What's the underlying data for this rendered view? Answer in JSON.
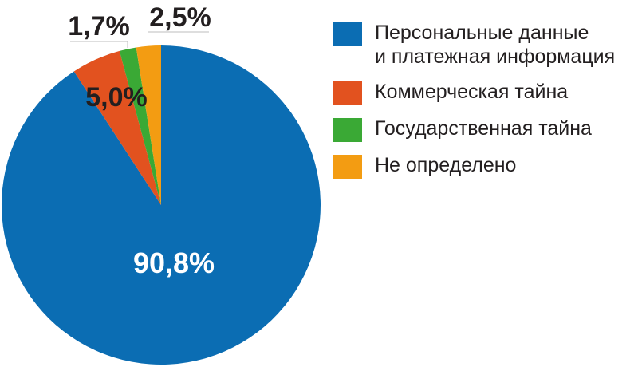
{
  "chart_data": {
    "type": "pie",
    "slices": [
      {
        "label": "Персональные данные и платежная информация",
        "value": 90.8,
        "display": "90,8%",
        "color": "#0b6db3"
      },
      {
        "label": "Коммерческая тайна",
        "value": 5.0,
        "display": "5,0%",
        "color": "#e2521f"
      },
      {
        "label": "Государственная тайна",
        "value": 1.7,
        "display": "1,7%",
        "color": "#3aa935"
      },
      {
        "label": "Не определено",
        "value": 2.5,
        "display": "2,5%",
        "color": "#f39c12"
      }
    ],
    "legend": {
      "placement": "right",
      "items": [
        {
          "lines": [
            "Персональные данные",
            "и платежная информация"
          ],
          "color": "#0b6db3"
        },
        {
          "lines": [
            "Коммерческая тайна"
          ],
          "color": "#e2521f"
        },
        {
          "lines": [
            "Государственная тайна"
          ],
          "color": "#3aa935"
        },
        {
          "lines": [
            "Не определено"
          ],
          "color": "#f39c12"
        }
      ]
    }
  }
}
